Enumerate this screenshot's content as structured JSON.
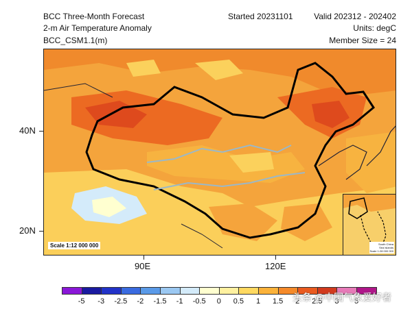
{
  "header": {
    "left1": "BCC Three-Month Forecast",
    "left2": "2-m Air Temperature Anomaly",
    "left3": "BCC_CSM1.1(m)",
    "started": "Started 20231101",
    "valid": "Valid 202312 - 202402",
    "units": "Units: degC",
    "member": "Member Size = 24"
  },
  "axes": {
    "y_ticks": [
      "40N",
      "20N"
    ],
    "x_ticks": [
      "90E",
      "120E"
    ]
  },
  "scale_label": "Scale 1:12 000 000",
  "inset": {
    "line1": "South China",
    "line2": "Sea Islands",
    "line3": "Scale 1:28 000 000"
  },
  "legend": {
    "labels": [
      "-5",
      "-3",
      "-2.5",
      "-2",
      "-1.5",
      "-1",
      "-0.5",
      "0",
      "0.5",
      "1",
      "1.5",
      "2",
      "2.5",
      "3",
      "5"
    ],
    "colors": [
      "#8a17d8",
      "#1a1aa0",
      "#2233c8",
      "#3a6be0",
      "#5a9ae8",
      "#9bc8f2",
      "#d4ebfa",
      "#ffffd0",
      "#fff1a0",
      "#ffd960",
      "#fbb23a",
      "#f58a2a",
      "#ea5a1f",
      "#d23a1e",
      "#e77ab8",
      "#b0168a"
    ]
  },
  "watermark": "头条 @中国气象爱好者",
  "colors": {
    "warm": "#f39a35",
    "hot": "#ea5a1f",
    "mild": "#fbd15c",
    "cool": "#d4ebfa",
    "border": "#000000",
    "river": "#9ab8c9"
  }
}
